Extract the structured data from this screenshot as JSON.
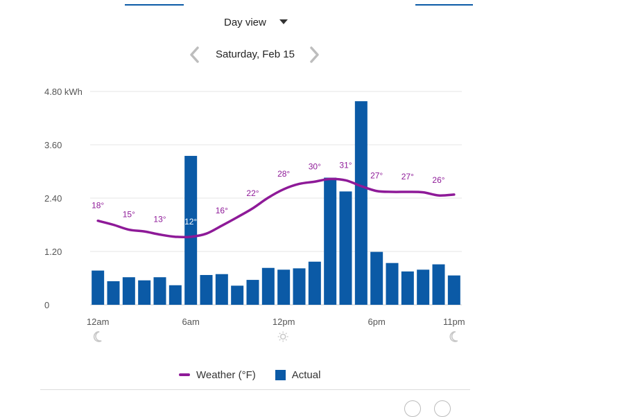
{
  "view_selector": {
    "label": "Day view"
  },
  "date_nav": {
    "date_label": "Saturday, Feb 15"
  },
  "colors": {
    "bars": "#0b5aa6",
    "weather_line": "#8e1a98",
    "grid": "#e6e6e6"
  },
  "chart_data": {
    "type": "bar",
    "y_axis": {
      "ticks": [
        "4.80 kWh",
        "3.60",
        "2.40",
        "1.20",
        "0"
      ],
      "tick_values": [
        4.8,
        3.6,
        2.4,
        1.2,
        0
      ],
      "ylim": [
        0,
        4.8
      ]
    },
    "x_axis": {
      "tick_labels": [
        "12am",
        "6am",
        "12pm",
        "6pm",
        "11pm"
      ],
      "tick_hours": [
        0,
        6,
        12,
        18,
        23
      ]
    },
    "hours": [
      0,
      1,
      2,
      3,
      4,
      5,
      6,
      7,
      8,
      9,
      10,
      11,
      12,
      13,
      14,
      15,
      16,
      17,
      18,
      19,
      20,
      21,
      22,
      23
    ],
    "series": [
      {
        "name": "Actual",
        "type": "bar",
        "values": [
          0.77,
          0.53,
          0.62,
          0.55,
          0.62,
          0.44,
          3.35,
          0.67,
          0.69,
          0.43,
          0.56,
          0.83,
          0.79,
          0.82,
          0.97,
          2.86,
          2.55,
          4.58,
          1.19,
          0.94,
          0.75,
          0.79,
          0.91,
          0.66
        ]
      },
      {
        "name": "Weather (°F)",
        "type": "line",
        "temperature_labels": [
          "18°",
          "15°",
          "13°",
          "12°",
          "16°",
          "22°",
          "28°",
          "30°",
          "31°",
          "27°",
          "27°",
          "26°"
        ],
        "temperature_label_hours": [
          0,
          2,
          4,
          6,
          8,
          10,
          12,
          14,
          16,
          18,
          20,
          22
        ],
        "line_values_kwh_scale": [
          1.89,
          1.8,
          1.69,
          1.65,
          1.58,
          1.53,
          1.53,
          1.6,
          1.78,
          1.97,
          2.17,
          2.41,
          2.6,
          2.72,
          2.77,
          2.83,
          2.8,
          2.67,
          2.56,
          2.54,
          2.54,
          2.53,
          2.46,
          2.48
        ]
      }
    ],
    "day_icons": [
      "moon-icon",
      "sun-icon",
      "moon-icon"
    ],
    "day_icon_hours": [
      0,
      12,
      23
    ],
    "grid": true,
    "legend_position": "bottom"
  },
  "legend": [
    {
      "label": "Weather (°F)",
      "kind": "line"
    },
    {
      "label": "Actual",
      "kind": "bar"
    }
  ]
}
